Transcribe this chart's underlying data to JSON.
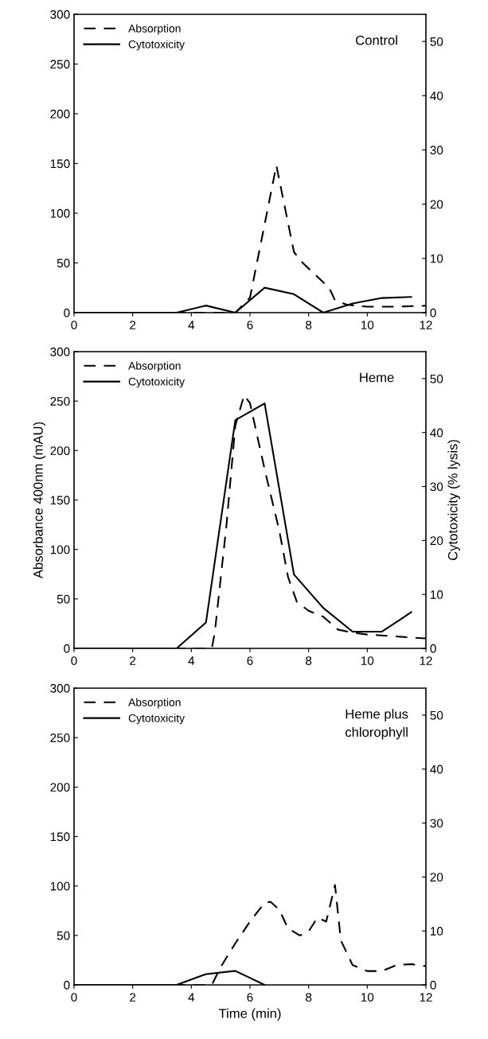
{
  "chart_data": [
    {
      "type": "line",
      "annotations": [
        "Control"
      ],
      "xlim": [
        0,
        12
      ],
      "xticks": [
        0,
        2,
        4,
        6,
        8,
        10,
        12
      ],
      "ylim": [
        0,
        300
      ],
      "yticks": [
        0,
        50,
        100,
        150,
        200,
        250,
        300
      ],
      "y2lim": [
        0,
        55
      ],
      "y2ticks": [
        0,
        10,
        20,
        30,
        40,
        50
      ],
      "legend": "top left",
      "grid": false,
      "series": [
        {
          "name": "Absorption",
          "color": "#000000",
          "line_style": "dashed",
          "x": [
            0,
            4.5,
            5.5,
            6,
            6.9,
            7.5,
            7.8,
            8.7,
            8.9,
            9.3,
            10,
            11,
            12
          ],
          "values": [
            0,
            0,
            0,
            15,
            148,
            61,
            50,
            25,
            12.5,
            8,
            6,
            6,
            7
          ]
        },
        {
          "name": "Cytotoxicity",
          "color": "#000000",
          "line_style": "solid",
          "axis": "y2",
          "x": [
            0,
            3.5,
            4.5,
            5.5,
            6.5,
            7.5,
            8.5,
            9.5,
            10.5,
            11.5
          ],
          "values": [
            0,
            0,
            1.3,
            0,
            4.6,
            3.4,
            0,
            1.7,
            2.7,
            2.9
          ]
        }
      ]
    },
    {
      "type": "line",
      "annotations": [
        "Heme"
      ],
      "ylabel": "Absorbance 400nm (mAU)",
      "y2label": "Cytotoxicity (% lysis)",
      "xlim": [
        0,
        12
      ],
      "xticks": [
        0,
        2,
        4,
        6,
        8,
        10,
        12
      ],
      "ylim": [
        0,
        300
      ],
      "yticks": [
        0,
        50,
        100,
        150,
        200,
        250,
        300
      ],
      "y2lim": [
        0,
        55
      ],
      "y2ticks": [
        0,
        10,
        20,
        30,
        40,
        50
      ],
      "legend": "top left",
      "grid": false,
      "series": [
        {
          "name": "Absorption",
          "color": "#000000",
          "line_style": "dashed",
          "x": [
            0,
            4.7,
            4.8,
            5.2,
            5.5,
            5.8,
            6,
            6.5,
            7,
            7.3,
            7.6,
            8,
            8.5,
            9,
            9.5,
            10,
            11,
            12
          ],
          "values": [
            0,
            0,
            16,
            125,
            225,
            256,
            248,
            181,
            119,
            72,
            47,
            38,
            32,
            19,
            16,
            14,
            12,
            10
          ]
        },
        {
          "name": "Cytotoxicity",
          "color": "#000000",
          "line_style": "solid",
          "axis": "y2",
          "x": [
            0,
            3.5,
            4.5,
            5.5,
            6.5,
            7.5,
            8.5,
            9.5,
            10.5,
            11.5
          ],
          "values": [
            0,
            0,
            4.8,
            42.3,
            45.4,
            13.7,
            7.5,
            3.1,
            3.1,
            6.7
          ]
        }
      ]
    },
    {
      "type": "line",
      "annotations": [
        "Heme plus\nchlorophyll"
      ],
      "xlabel": "Time (min)",
      "xlim": [
        0,
        12
      ],
      "xticks": [
        0,
        2,
        4,
        6,
        8,
        10,
        12
      ],
      "ylim": [
        0,
        300
      ],
      "yticks": [
        0,
        50,
        100,
        150,
        200,
        250,
        300
      ],
      "y2lim": [
        0,
        55
      ],
      "y2ticks": [
        0,
        10,
        20,
        30,
        40,
        50
      ],
      "legend": "top left",
      "grid": false,
      "series": [
        {
          "name": "Absorption",
          "color": "#000000",
          "line_style": "dashed",
          "x": [
            0,
            4.7,
            5,
            5.5,
            6,
            6.5,
            6.7,
            7,
            7.3,
            7.7,
            8,
            8.3,
            8.6,
            8.9,
            9.1,
            9.5,
            10,
            10.5,
            11,
            11.5,
            12
          ],
          "values": [
            0,
            0,
            18,
            42,
            64,
            83,
            84,
            76,
            57,
            50,
            54,
            68,
            64,
            101,
            45,
            20,
            14,
            14,
            20,
            21,
            19
          ]
        },
        {
          "name": "Cytotoxicity",
          "color": "#000000",
          "line_style": "solid",
          "axis": "y2",
          "x": [
            0,
            3.5,
            4.5,
            5.5,
            6.5
          ],
          "values": [
            0,
            0,
            2.0,
            2.6,
            0
          ]
        }
      ]
    }
  ]
}
